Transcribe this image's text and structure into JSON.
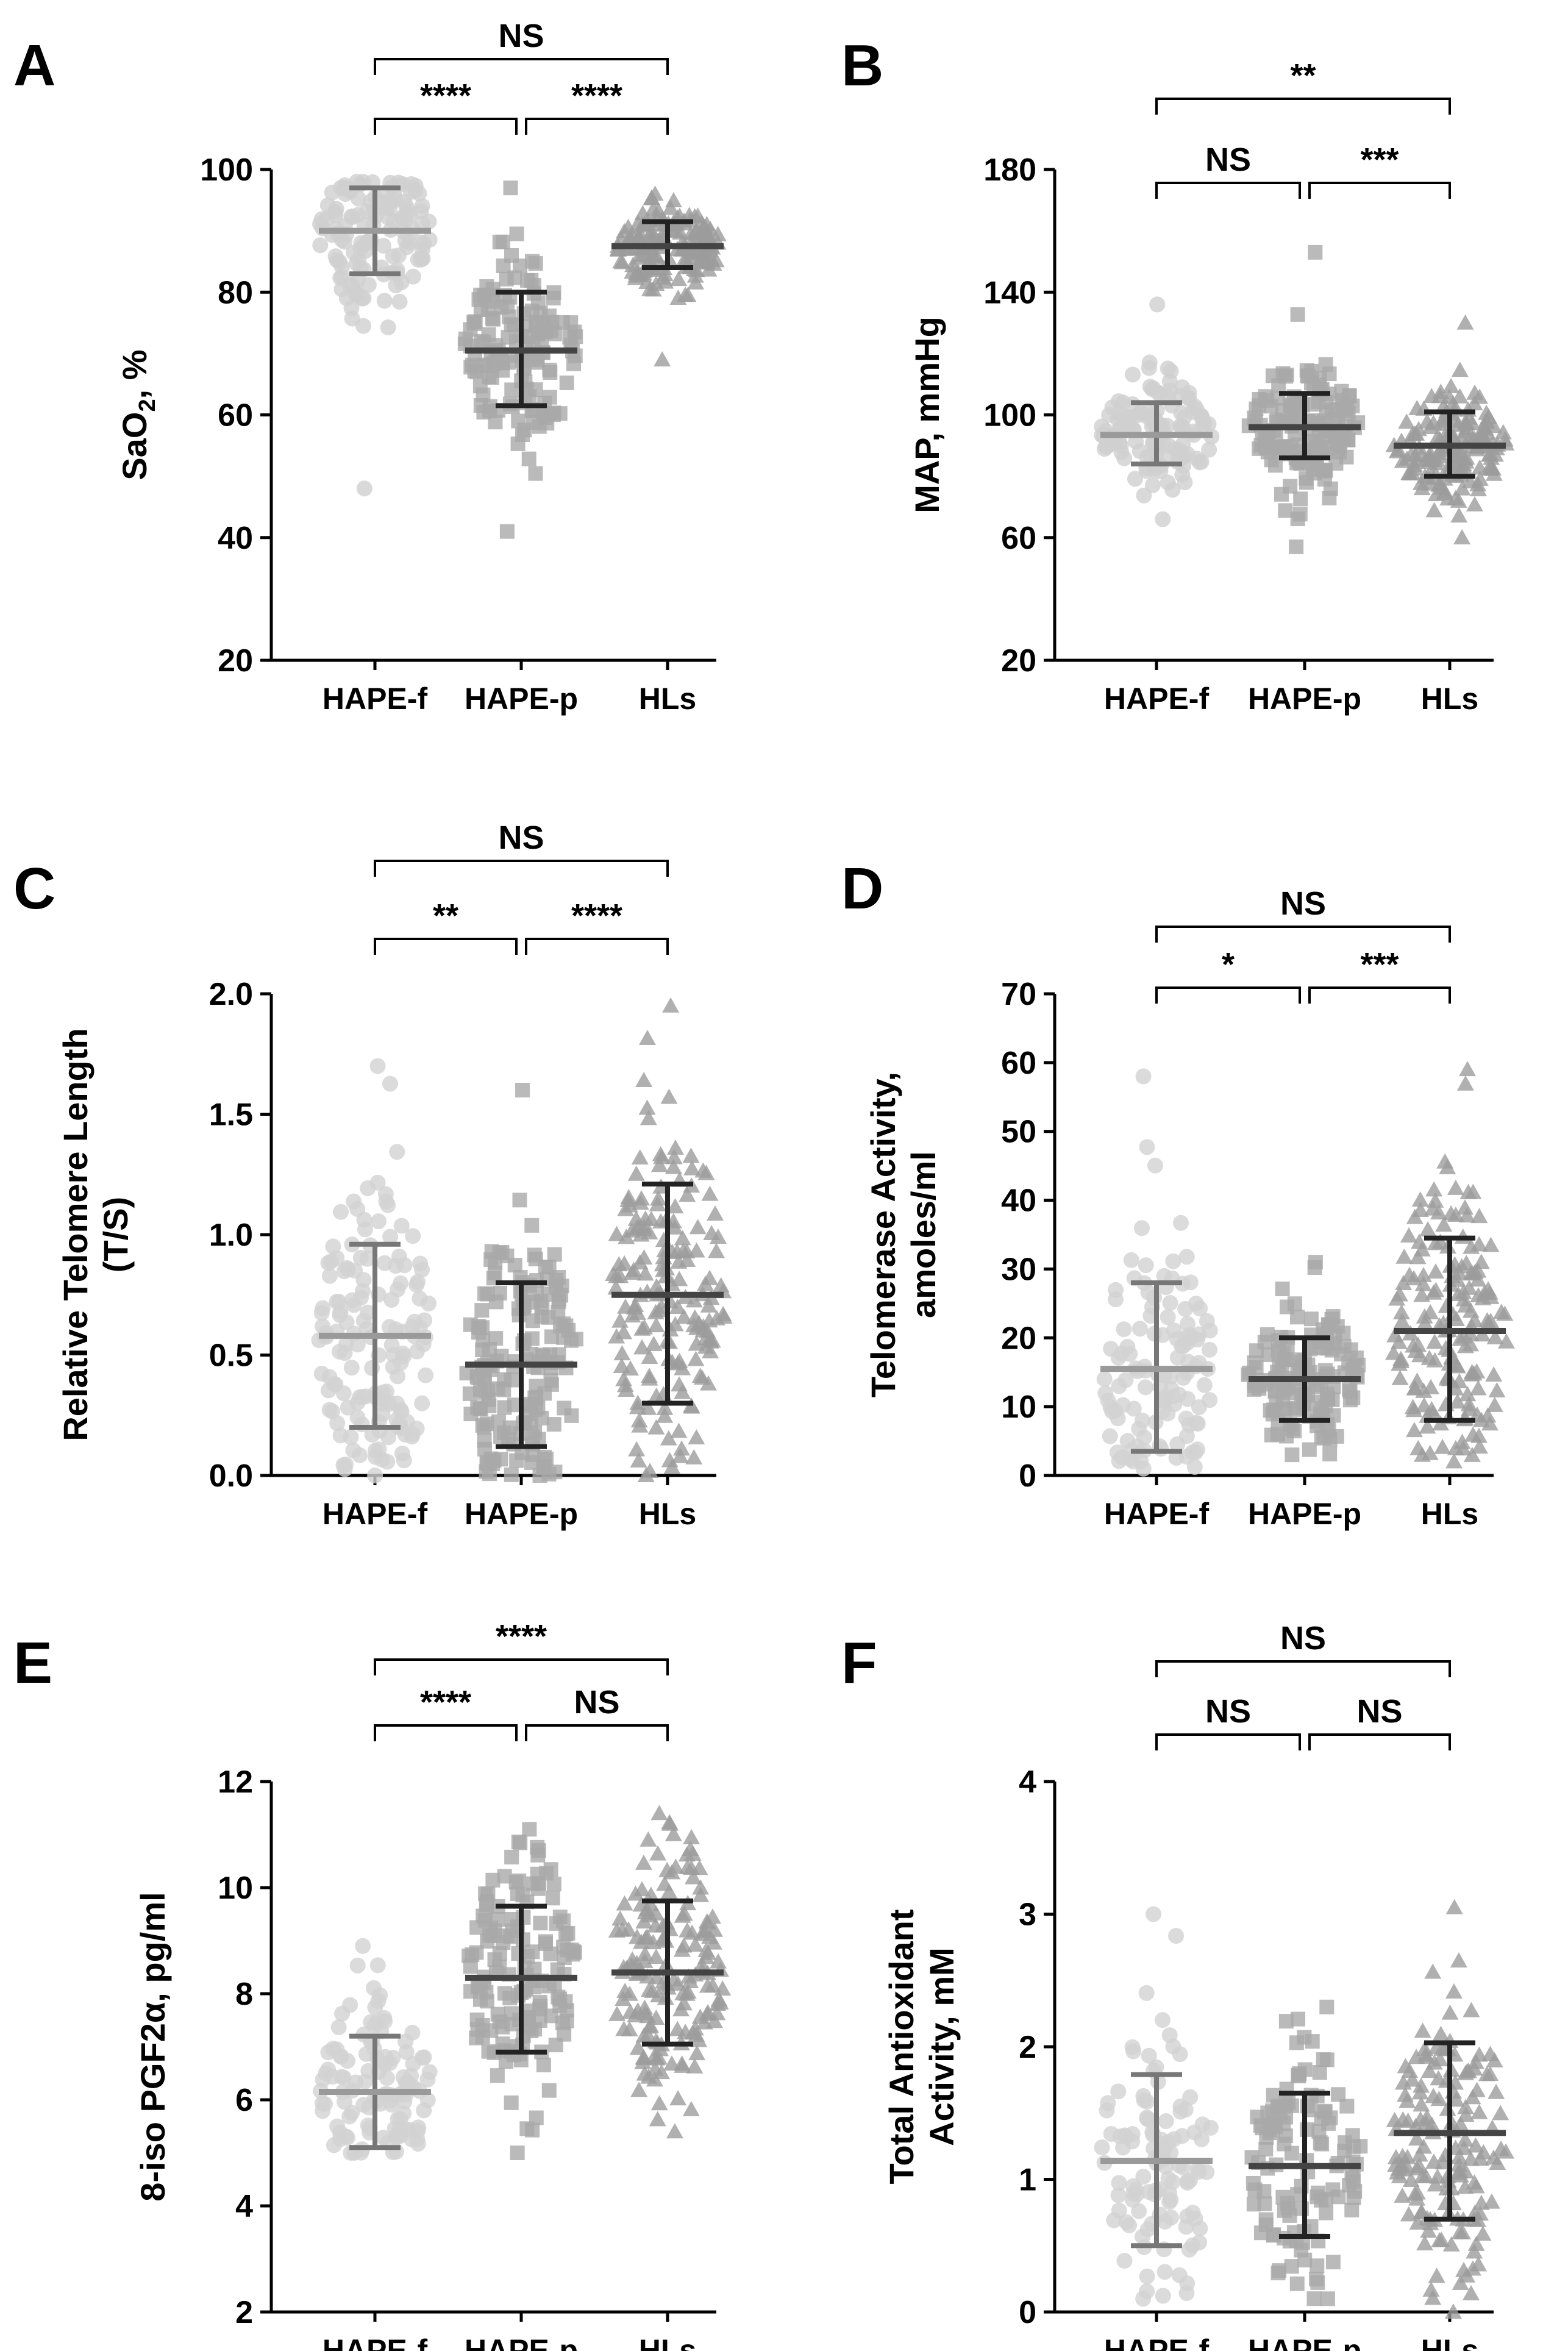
{
  "chart_data": [
    {
      "panel": "A",
      "type": "scatter",
      "ylabel": "SaO2, %",
      "ylabel_parts": [
        "SaO",
        "2",
        ", %"
      ],
      "ylim": [
        20,
        100
      ],
      "yticks": [
        20,
        40,
        60,
        80,
        100
      ],
      "categories": [
        "HAPE-f",
        "HAPE-p",
        "HLs"
      ],
      "series": [
        {
          "name": "HAPE-f",
          "marker": "circle",
          "color": "#cfcfcf",
          "center": 90,
          "lower": 83,
          "upper": 97,
          "mean": 90,
          "error_low": 83,
          "error_high": 97,
          "range": [
            48,
            98
          ],
          "n": 130
        },
        {
          "name": "HAPE-p",
          "marker": "square",
          "color": "#a9a9a9",
          "center": 70.5,
          "lower": 61.5,
          "upper": 80,
          "mean": 70.5,
          "error_low": 61.5,
          "error_high": 80,
          "range": [
            41,
            97
          ],
          "n": 150
        },
        {
          "name": "HLs",
          "marker": "triangle",
          "color": "#9c9c9c",
          "center": 87.5,
          "lower": 84,
          "upper": 91.5,
          "mean": 87.5,
          "error_low": 84,
          "error_high": 91.5,
          "range": [
            69,
            96
          ],
          "n": 160
        }
      ],
      "comparisons": [
        {
          "from": 0,
          "to": 1,
          "label": "****",
          "level": 1
        },
        {
          "from": 1,
          "to": 2,
          "label": "****",
          "level": 1
        },
        {
          "from": 0,
          "to": 2,
          "label": "NS",
          "level": 2
        }
      ]
    },
    {
      "panel": "B",
      "type": "scatter",
      "ylabel": "MAP, mmHg",
      "ylim": [
        20,
        180
      ],
      "yticks": [
        20,
        60,
        100,
        140,
        180
      ],
      "categories": [
        "HAPE-f",
        "HAPE-p",
        "HLs"
      ],
      "series": [
        {
          "name": "HAPE-f",
          "marker": "circle",
          "color": "#cfcfcf",
          "center": 93.5,
          "lower": 84,
          "upper": 104,
          "mean": 93.5,
          "error_low": 84,
          "error_high": 104,
          "range": [
            66,
            136
          ],
          "n": 130
        },
        {
          "name": "HAPE-p",
          "marker": "square",
          "color": "#a9a9a9",
          "center": 96,
          "lower": 86,
          "upper": 107,
          "mean": 96,
          "error_low": 86,
          "error_high": 107,
          "range": [
            57,
            153
          ],
          "n": 150
        },
        {
          "name": "HLs",
          "marker": "triangle",
          "color": "#9c9c9c",
          "center": 90,
          "lower": 80,
          "upper": 101,
          "mean": 90,
          "error_low": 80,
          "error_high": 101,
          "range": [
            60,
            130
          ],
          "n": 160
        }
      ],
      "comparisons": [
        {
          "from": 0,
          "to": 1,
          "label": "NS",
          "level": 1
        },
        {
          "from": 1,
          "to": 2,
          "label": "***",
          "level": 1
        },
        {
          "from": 0,
          "to": 2,
          "label": "**",
          "level": 2
        }
      ]
    },
    {
      "panel": "C",
      "type": "scatter",
      "ylabel": "Relative Telomere Length (T/S)",
      "ylabel_lines": [
        "Relative Telomere Length",
        "(T/S)"
      ],
      "ylim": [
        0.0,
        2.0
      ],
      "yticks": [
        0.0,
        0.5,
        1.0,
        1.5,
        2.0
      ],
      "ytick_labels": [
        "0.0",
        "0.5",
        "1.0",
        "1.5",
        "2.0"
      ],
      "categories": [
        "HAPE-f",
        "HAPE-p",
        "HLs"
      ],
      "series": [
        {
          "name": "HAPE-f",
          "marker": "circle",
          "color": "#d2d2d2",
          "center": 0.58,
          "lower": 0.2,
          "upper": 0.96,
          "mean": 0.58,
          "error_low": 0.2,
          "error_high": 0.96,
          "range": [
            0.0,
            1.7
          ],
          "n": 150
        },
        {
          "name": "HAPE-p",
          "marker": "square",
          "color": "#a9a9a9",
          "center": 0.46,
          "lower": 0.12,
          "upper": 0.8,
          "mean": 0.46,
          "error_low": 0.12,
          "error_high": 0.8,
          "range": [
            0.0,
            1.6
          ],
          "n": 170
        },
        {
          "name": "HLs",
          "marker": "triangle",
          "color": "#9c9c9c",
          "center": 0.75,
          "lower": 0.3,
          "upper": 1.21,
          "mean": 0.75,
          "error_low": 0.3,
          "error_high": 1.21,
          "range": [
            0.0,
            1.95
          ],
          "n": 180
        }
      ],
      "comparisons": [
        {
          "from": 0,
          "to": 1,
          "label": "**",
          "level": 1
        },
        {
          "from": 1,
          "to": 2,
          "label": "****",
          "level": 1
        },
        {
          "from": 0,
          "to": 2,
          "label": "NS",
          "level": 2
        }
      ]
    },
    {
      "panel": "D",
      "type": "scatter",
      "ylabel": "Telomerase Activity, amoles/ml",
      "ylabel_lines": [
        "Telomerase Activity,",
        "amoles/ml"
      ],
      "ylim": [
        0,
        70
      ],
      "yticks": [
        0,
        10,
        20,
        30,
        40,
        50,
        60,
        70
      ],
      "categories": [
        "HAPE-f",
        "HAPE-p",
        "HLs"
      ],
      "series": [
        {
          "name": "HAPE-f",
          "marker": "circle",
          "color": "#d2d2d2",
          "center": 15.5,
          "lower": 3.5,
          "upper": 28,
          "mean": 15.5,
          "error_low": 3.5,
          "error_high": 28,
          "range": [
            1,
            58
          ],
          "n": 120
        },
        {
          "name": "HAPE-p",
          "marker": "square",
          "color": "#a9a9a9",
          "center": 14,
          "lower": 8,
          "upper": 20,
          "mean": 14,
          "error_low": 8,
          "error_high": 20,
          "range": [
            3,
            31
          ],
          "n": 140
        },
        {
          "name": "HLs",
          "marker": "triangle",
          "color": "#9c9c9c",
          "center": 21,
          "lower": 8,
          "upper": 34.5,
          "mean": 21,
          "error_low": 8,
          "error_high": 34.5,
          "range": [
            2,
            59
          ],
          "n": 170
        }
      ],
      "comparisons": [
        {
          "from": 0,
          "to": 1,
          "label": "*",
          "level": 1
        },
        {
          "from": 1,
          "to": 2,
          "label": "***",
          "level": 1
        },
        {
          "from": 0,
          "to": 2,
          "label": "NS",
          "level": 2
        }
      ]
    },
    {
      "panel": "E",
      "type": "scatter",
      "ylabel": "8-iso PGF2α, pg/ml",
      "ylim": [
        2,
        12
      ],
      "yticks": [
        2,
        4,
        6,
        8,
        10,
        12
      ],
      "categories": [
        "HAPE-f",
        "HAPE-p",
        "HLs"
      ],
      "series": [
        {
          "name": "HAPE-f",
          "marker": "circle",
          "color": "#d2d2d2",
          "center": 6.15,
          "lower": 5.1,
          "upper": 7.2,
          "mean": 6.15,
          "error_low": 5.1,
          "error_high": 7.2,
          "range": [
            5.0,
            8.9
          ],
          "n": 120
        },
        {
          "name": "HAPE-p",
          "marker": "square",
          "color": "#a9a9a9",
          "center": 8.3,
          "lower": 6.9,
          "upper": 9.65,
          "mean": 8.3,
          "error_low": 6.9,
          "error_high": 9.65,
          "range": [
            5.0,
            11.1
          ],
          "n": 150
        },
        {
          "name": "HLs",
          "marker": "triangle",
          "color": "#9c9c9c",
          "center": 8.4,
          "lower": 7.05,
          "upper": 9.75,
          "mean": 8.4,
          "error_low": 7.05,
          "error_high": 9.75,
          "range": [
            5.4,
            11.4
          ],
          "n": 170
        }
      ],
      "comparisons": [
        {
          "from": 0,
          "to": 1,
          "label": "****",
          "level": 1
        },
        {
          "from": 1,
          "to": 2,
          "label": "NS",
          "level": 1
        },
        {
          "from": 0,
          "to": 2,
          "label": "****",
          "level": 2
        }
      ]
    },
    {
      "panel": "F",
      "type": "scatter",
      "ylabel": "Total Antioxidant Activity, mM",
      "ylabel_lines": [
        "Total Antioxidant",
        "Activity, mM"
      ],
      "ylim": [
        0,
        4
      ],
      "yticks": [
        0,
        1,
        2,
        3,
        4
      ],
      "categories": [
        "HAPE-f",
        "HAPE-p",
        "HLs"
      ],
      "series": [
        {
          "name": "HAPE-f",
          "marker": "circle",
          "color": "#d2d2d2",
          "center": 1.14,
          "lower": 0.5,
          "upper": 1.79,
          "mean": 1.14,
          "error_low": 0.5,
          "error_high": 1.79,
          "range": [
            0.1,
            3.0
          ],
          "n": 110
        },
        {
          "name": "HAPE-p",
          "marker": "square",
          "color": "#a9a9a9",
          "center": 1.1,
          "lower": 0.57,
          "upper": 1.65,
          "mean": 1.1,
          "error_low": 0.57,
          "error_high": 1.65,
          "range": [
            0.1,
            2.3
          ],
          "n": 120
        },
        {
          "name": "HLs",
          "marker": "triangle",
          "color": "#9c9c9c",
          "center": 1.35,
          "lower": 0.7,
          "upper": 2.03,
          "mean": 1.35,
          "error_low": 0.7,
          "error_high": 2.03,
          "range": [
            0.0,
            3.05
          ],
          "n": 160
        }
      ],
      "comparisons": [
        {
          "from": 0,
          "to": 1,
          "label": "NS",
          "level": 1
        },
        {
          "from": 1,
          "to": 2,
          "label": "NS",
          "level": 1
        },
        {
          "from": 0,
          "to": 2,
          "label": "NS",
          "level": 2
        }
      ]
    }
  ]
}
